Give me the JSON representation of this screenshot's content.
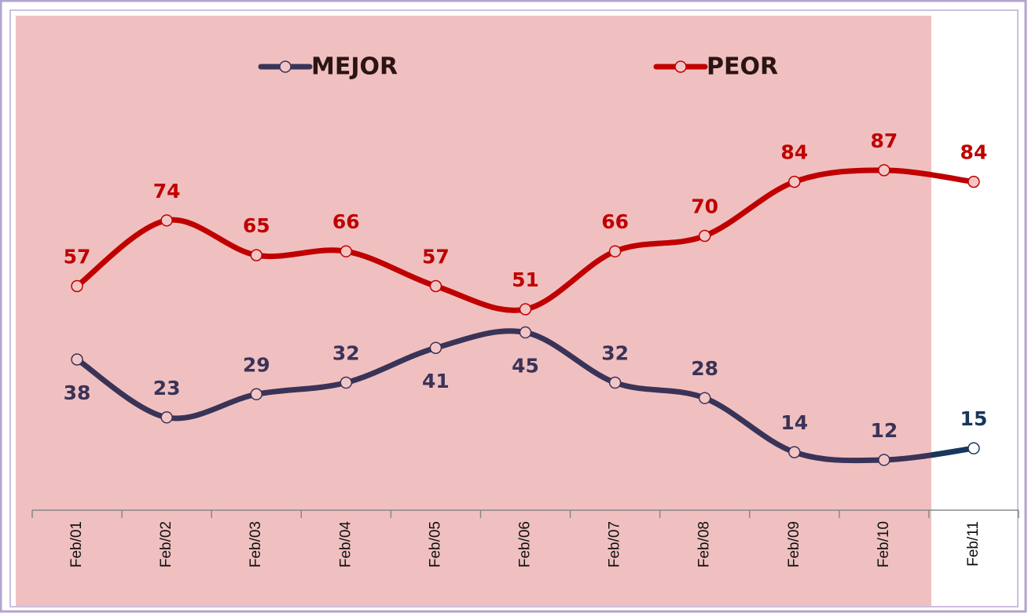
{
  "chart_data": {
    "type": "line",
    "categories": [
      "Feb/01",
      "Feb/02",
      "Feb/03",
      "Feb/04",
      "Feb/05",
      "Feb/06",
      "Feb/07",
      "Feb/08",
      "Feb/09",
      "Feb/10",
      "Feb/11"
    ],
    "series": [
      {
        "name": "MEJOR",
        "color": "#3a3358",
        "values": [
          38,
          23,
          29,
          32,
          41,
          45,
          32,
          28,
          14,
          12,
          15
        ]
      },
      {
        "name": "PEOR",
        "color": "#c00000",
        "values": [
          57,
          74,
          65,
          66,
          57,
          51,
          66,
          70,
          84,
          87,
          84
        ]
      }
    ],
    "ylim": [
      0,
      127
    ],
    "legend": "top"
  }
}
